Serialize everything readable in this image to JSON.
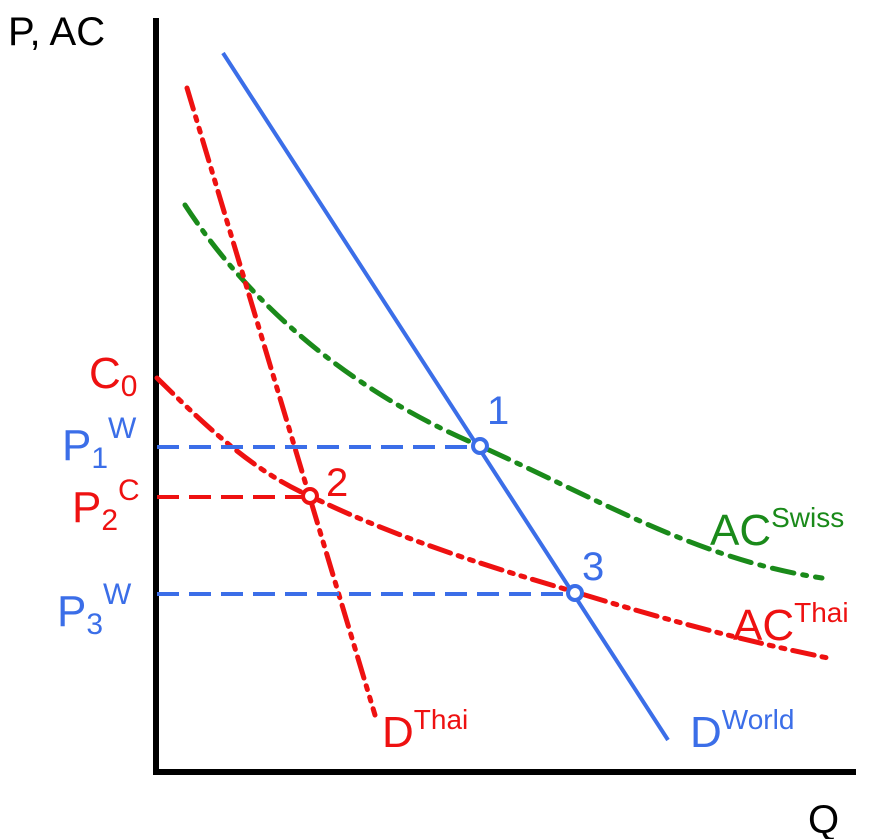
{
  "colors": {
    "axis": "#000000",
    "world": "#3b6ee8",
    "thai": "#ee1111",
    "swiss": "#1a8a1a",
    "background": "#ffffff"
  },
  "axes": {
    "y_label": "P, AC",
    "x_label": "Q"
  },
  "price_labels": {
    "c0": {
      "main": "C",
      "sub": "0"
    },
    "p1": {
      "main": "P",
      "sub": "1",
      "sup": "W"
    },
    "p2": {
      "main": "P",
      "sub": "2",
      "sup": "C"
    },
    "p3": {
      "main": "P",
      "sub": "3",
      "sup": "W"
    }
  },
  "curve_labels": {
    "ac_swiss": {
      "main": "AC",
      "sup": "Swiss"
    },
    "ac_thai": {
      "main": "AC",
      "sup": "Thai"
    },
    "d_thai": {
      "main": "D",
      "sup": "Thai"
    },
    "d_world": {
      "main": "D",
      "sup": "World"
    }
  },
  "points": {
    "p1": "1",
    "p2": "2",
    "p3": "3"
  }
}
